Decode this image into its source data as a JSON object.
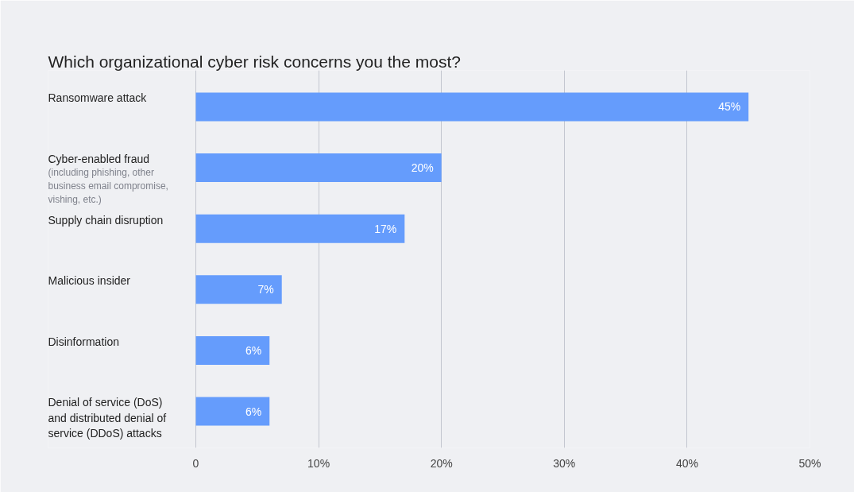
{
  "chart_data": {
    "type": "bar",
    "orientation": "horizontal",
    "title": "Which organizational cyber risk concerns you the most?",
    "categories": [
      "Ransomware attack",
      "Cyber-enabled fraud",
      "Supply chain disruption",
      "Malicious insider",
      "Disinformation",
      "Denial of service (DoS) and distributed denial of service (DDoS) attacks"
    ],
    "values": [
      45,
      20,
      17,
      7,
      6,
      6
    ],
    "value_labels": [
      "45%",
      "20%",
      "17%",
      "7%",
      "6%",
      "6%"
    ],
    "color": "#659cfc",
    "annotations": [
      "(including phishing, other business email compromise, vishing, etc.)"
    ],
    "xlim": [
      0,
      50
    ],
    "xticks": [
      0,
      {
        "value": 10,
        "label": "10%"
      },
      {
        "value": 20,
        "label": "20%"
      },
      {
        "value": 30,
        "label": "30%"
      },
      {
        "value": 40,
        "label": "40%"
      },
      {
        "value": 50,
        "label": "50%"
      }
    ],
    "grid": "x"
  }
}
